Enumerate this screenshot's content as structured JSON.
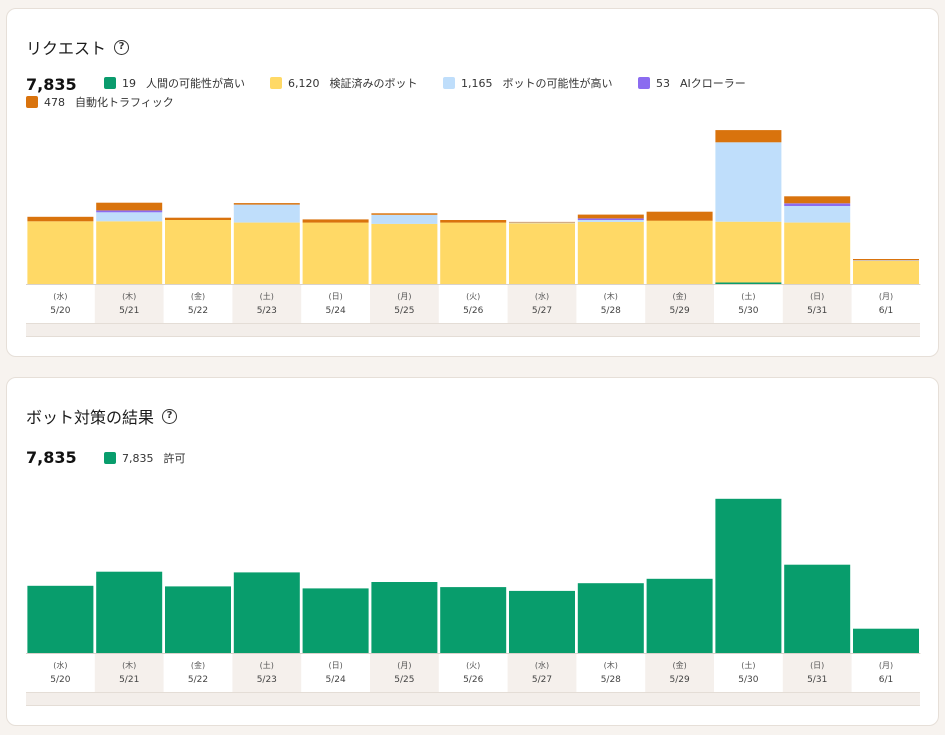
{
  "colors": {
    "human": "#0a9b6d",
    "verified_bot": "#ffd966",
    "likely_bot": "#bfdefb",
    "ai_crawler": "#8b6cf0",
    "automated": "#d9730d",
    "allowed": "#089d6c",
    "alt_band": "#f5f0ec"
  },
  "requests_card": {
    "title": "リクエスト",
    "help_icon": "question-circle-icon",
    "total": "7,835",
    "legend": [
      {
        "key": "human",
        "value": "19",
        "label": "人間の可能性が高い"
      },
      {
        "key": "verified_bot",
        "value": "6,120",
        "label": "検証済みのボット"
      },
      {
        "key": "likely_bot",
        "value": "1,165",
        "label": "ボットの可能性が高い"
      },
      {
        "key": "ai_crawler",
        "value": "53",
        "label": "AIクローラー"
      },
      {
        "key": "automated",
        "value": "478",
        "label": "自動化トラフィック"
      }
    ]
  },
  "bot_card": {
    "title": "ボット対策の結果",
    "help_icon": "question-circle-icon",
    "total": "7,835",
    "legend": [
      {
        "key": "allowed",
        "value": "7,835",
        "label": "許可"
      }
    ]
  },
  "chart_data": [
    {
      "type": "bar",
      "stacked": true,
      "title": "リクエスト",
      "categories": [
        "5/20",
        "5/21",
        "5/22",
        "5/23",
        "5/24",
        "5/25",
        "5/26",
        "5/27",
        "5/28",
        "5/29",
        "5/30",
        "5/31",
        "6/1"
      ],
      "weekdays": [
        "(水)",
        "(木)",
        "(金)",
        "(土)",
        "(日)",
        "(月)",
        "(火)",
        "(水)",
        "(木)",
        "(金)",
        "(土)",
        "(日)",
        "(月)"
      ],
      "series": [
        {
          "name": "人間の可能性が高い",
          "key": "human",
          "values": [
            0,
            0,
            0,
            0,
            0,
            0,
            0,
            0,
            0,
            0,
            12,
            0,
            0
          ]
        },
        {
          "name": "検証済みのボット",
          "key": "verified_bot",
          "values": [
            490,
            490,
            500,
            480,
            480,
            470,
            480,
            475,
            485,
            495,
            475,
            480,
            180
          ]
        },
        {
          "name": "ボットの可能性が高い",
          "key": "likely_bot",
          "values": [
            0,
            70,
            0,
            140,
            0,
            70,
            0,
            5,
            15,
            0,
            620,
            130,
            5
          ]
        },
        {
          "name": "AIクローラー",
          "key": "ai_crawler",
          "values": [
            0,
            15,
            0,
            0,
            0,
            0,
            0,
            0,
            12,
            0,
            0,
            20,
            0
          ]
        },
        {
          "name": "自動化トラフィック",
          "key": "automated",
          "values": [
            35,
            60,
            18,
            12,
            25,
            12,
            20,
            5,
            30,
            70,
            95,
            55,
            10
          ]
        }
      ],
      "ylim": [
        0,
        1250
      ]
    },
    {
      "type": "bar",
      "title": "ボット対策の結果",
      "categories": [
        "5/20",
        "5/21",
        "5/22",
        "5/23",
        "5/24",
        "5/25",
        "5/26",
        "5/27",
        "5/28",
        "5/29",
        "5/30",
        "5/31",
        "6/1"
      ],
      "weekdays": [
        "(水)",
        "(木)",
        "(金)",
        "(土)",
        "(日)",
        "(月)",
        "(火)",
        "(水)",
        "(木)",
        "(金)",
        "(土)",
        "(日)",
        "(月)"
      ],
      "series": [
        {
          "name": "許可",
          "key": "allowed",
          "values": [
            525,
            635,
            520,
            630,
            505,
            555,
            515,
            485,
            545,
            580,
            1205,
            690,
            190
          ]
        }
      ],
      "ylim": [
        0,
        1250
      ]
    }
  ]
}
